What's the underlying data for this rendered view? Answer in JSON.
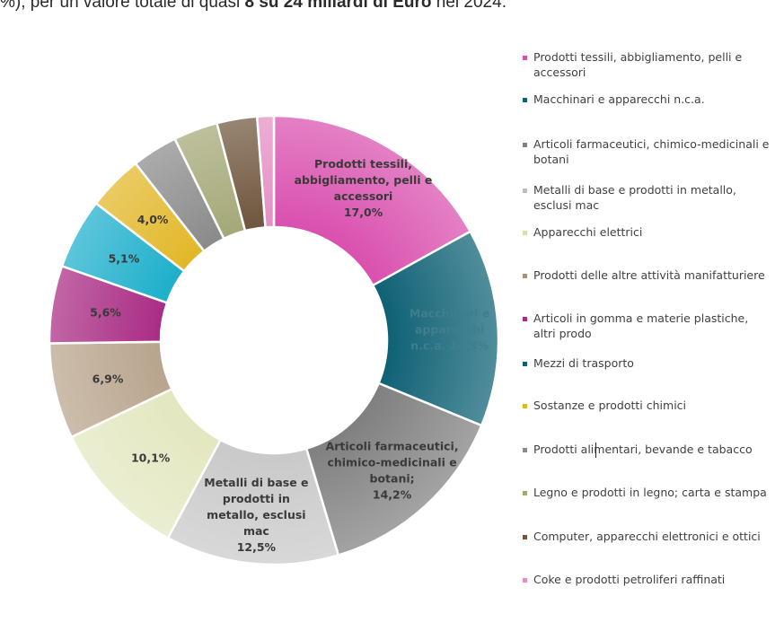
{
  "header_text": {
    "prefix": "%), per un valore totale di quasi ",
    "bold": "8 su 24 miliardi di Euro",
    "suffix": " nel 2024."
  },
  "chart_data": {
    "type": "pie",
    "donut": true,
    "legend_position": "right",
    "slices": [
      {
        "name": "Prodotti tessili, abbigliamento, pelli e accessori",
        "value": 17.0,
        "label": "Prodotti tessili,\nabbigliamento, pelli e\naccessori\n17,0%",
        "color": "#D94FAE",
        "label_color": "#3a3a3a"
      },
      {
        "name": "Macchinari e apparecchi n.c.a.",
        "value": 14.3,
        "label": "Macchinari e\napparecchi\nn.c.a.   14,3%",
        "color": "#0E6074",
        "label_color": "#3E7E8D"
      },
      {
        "name": "Articoli farmaceutici, chimico-medicinali e botani",
        "value": 14.2,
        "label": "Articoli farmaceutici,\nchimico-medicinali e\nbotani;\n14,2%",
        "color": "#7F7F7F",
        "label_color": "#3a3a3a"
      },
      {
        "name": "Metalli di base e prodotti in metallo, esclusi mac",
        "value": 12.5,
        "label": "Metalli di base e\nprodotti in\nmetallo, esclusi\nmac\n12,5%",
        "color": "#C9C9C9",
        "label_color": "#3a3a3a"
      },
      {
        "name": "Apparecchi elettrici",
        "value": 10.1,
        "label": "10,1%",
        "color": "#E3E7BF",
        "label_color": "#3a3a3a"
      },
      {
        "name": "Prodotti delle altre attività manifatturiere",
        "value": 6.9,
        "label": "6,9%",
        "color": "#B8A48C",
        "label_color": "#3a3a3a"
      },
      {
        "name": "Articoli in gomma e materie plastiche, altri prodo",
        "value": 5.6,
        "label": "5,6%",
        "color": "#A92B84",
        "label_color": "#3a3a3a"
      },
      {
        "name": "Mezzi di trasporto",
        "value": 5.1,
        "label": "5,1%",
        "color": "#1CAFCB",
        "label_color": "#3a3a3a"
      },
      {
        "name": "Sostanze e prodotti chimici",
        "value": 4.0,
        "label": "4,0%",
        "color": "#E2B727",
        "label_color": "#3a3a3a"
      },
      {
        "name": "Prodotti alimentari, bevande e tabacco",
        "value": 3.3,
        "label": "",
        "color": "#8A8A8A",
        "label_color": "#3a3a3a"
      },
      {
        "name": "Legno e prodotti in legno; carta e stampa",
        "value": 3.2,
        "label": "",
        "color": "#A4A876",
        "label_color": "#3a3a3a"
      },
      {
        "name": "Computer, apparecchi elettronici e ottici",
        "value": 2.9,
        "label": "",
        "color": "#6E553C",
        "label_color": "#3a3a3a"
      },
      {
        "name": "Coke e prodotti petroliferi raffinati",
        "value": 1.2,
        "label": "",
        "color": "#E58FC4",
        "label_color": "#3a3a3a"
      }
    ]
  },
  "legend": {
    "items": [
      {
        "label": "Prodotti tessili, abbigliamento, pelli e accessori",
        "color": "#D94FAE"
      },
      {
        "label": "Macchinari e apparecchi n.c.a.",
        "color": "#0E6074"
      },
      {
        "label": "Articoli farmaceutici, chimico-medicinali e botani",
        "color": "#7F7F7F"
      },
      {
        "label": "Metalli di base e prodotti in metallo, esclusi mac",
        "color": "#BDBDBD"
      },
      {
        "label": "Apparecchi elettrici",
        "color": "#D9DDB0"
      },
      {
        "label": "Prodotti delle altre attività manifatturiere",
        "color": "#A8927A"
      },
      {
        "label": "Articoli in gomma e materie plastiche, altri prodo",
        "color": "#A92B84"
      },
      {
        "label": "Mezzi di trasporto",
        "color": "#0E6074"
      },
      {
        "label": "Sostanze e prodotti chimici",
        "color": "#E2B727"
      },
      {
        "label": "Prodotti alimentari, bevande e tabacco",
        "color": "#8A8A8A"
      },
      {
        "label": "Legno e prodotti in legno; carta e stampa",
        "color": "#A4A876"
      },
      {
        "label": "Computer, apparecchi elettronici e ottici",
        "color": "#6E553C"
      },
      {
        "label": "Coke e prodotti petroliferi raffinati",
        "color": "#E58FC4"
      }
    ]
  }
}
